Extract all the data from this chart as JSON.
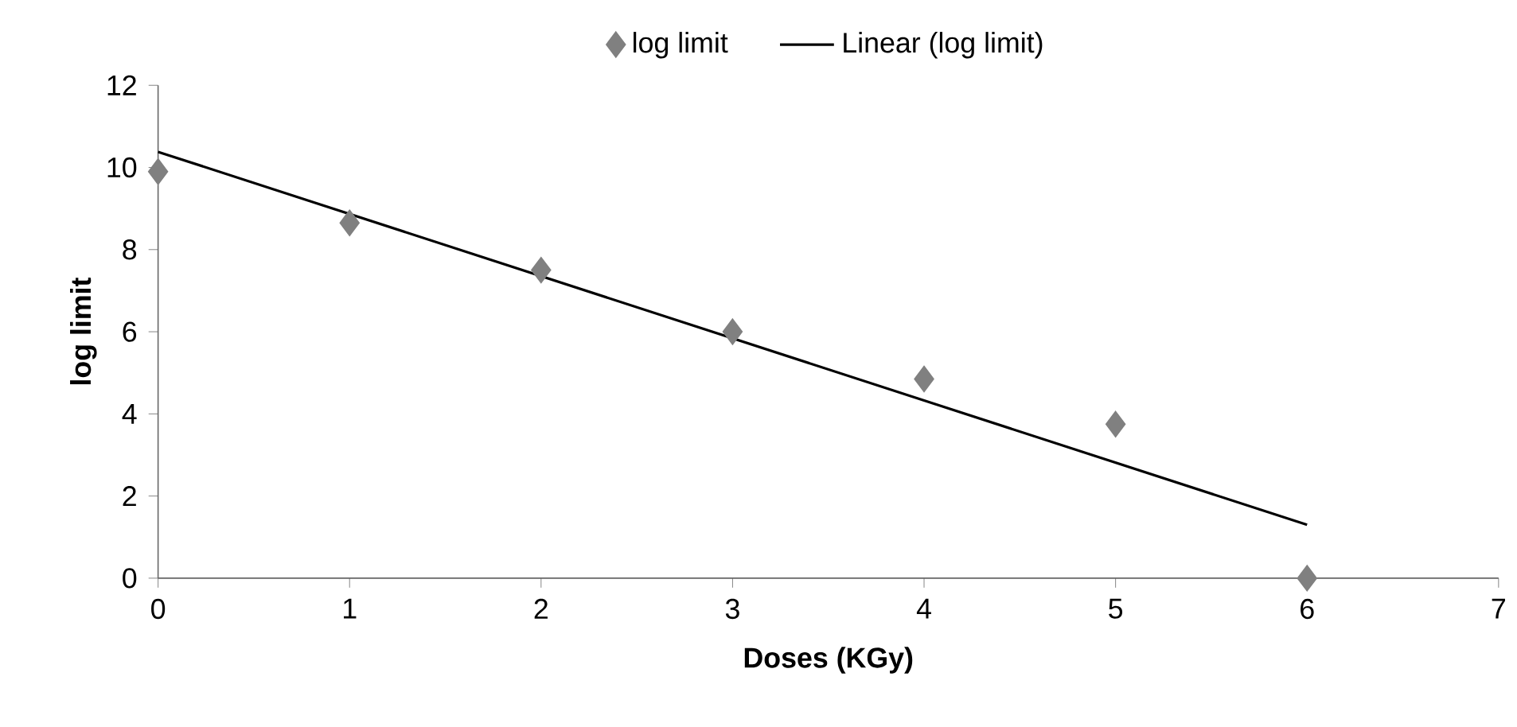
{
  "chart_data": {
    "type": "scatter",
    "xlabel": "Doses (KGy)",
    "ylabel": "log limit",
    "xlim": [
      0,
      7
    ],
    "xticks": [
      0,
      1,
      2,
      3,
      4,
      5,
      6,
      7
    ],
    "ylim": [
      0,
      12
    ],
    "yticks": [
      0,
      2,
      4,
      6,
      8,
      10,
      12
    ],
    "legend": "top",
    "grid": false,
    "series": [
      {
        "name": "log limit",
        "marker": "diamond",
        "color": "#808080",
        "x": [
          0,
          1,
          2,
          3,
          4,
          5,
          6
        ],
        "values": [
          9.9,
          8.65,
          7.5,
          6.0,
          4.85,
          3.75,
          0
        ]
      },
      {
        "name": "Linear (log limit)",
        "type": "line",
        "marker": "none",
        "line_style": "solid",
        "color": "#000000",
        "x": [
          0,
          6
        ],
        "values": [
          10.38,
          1.3
        ]
      }
    ]
  }
}
